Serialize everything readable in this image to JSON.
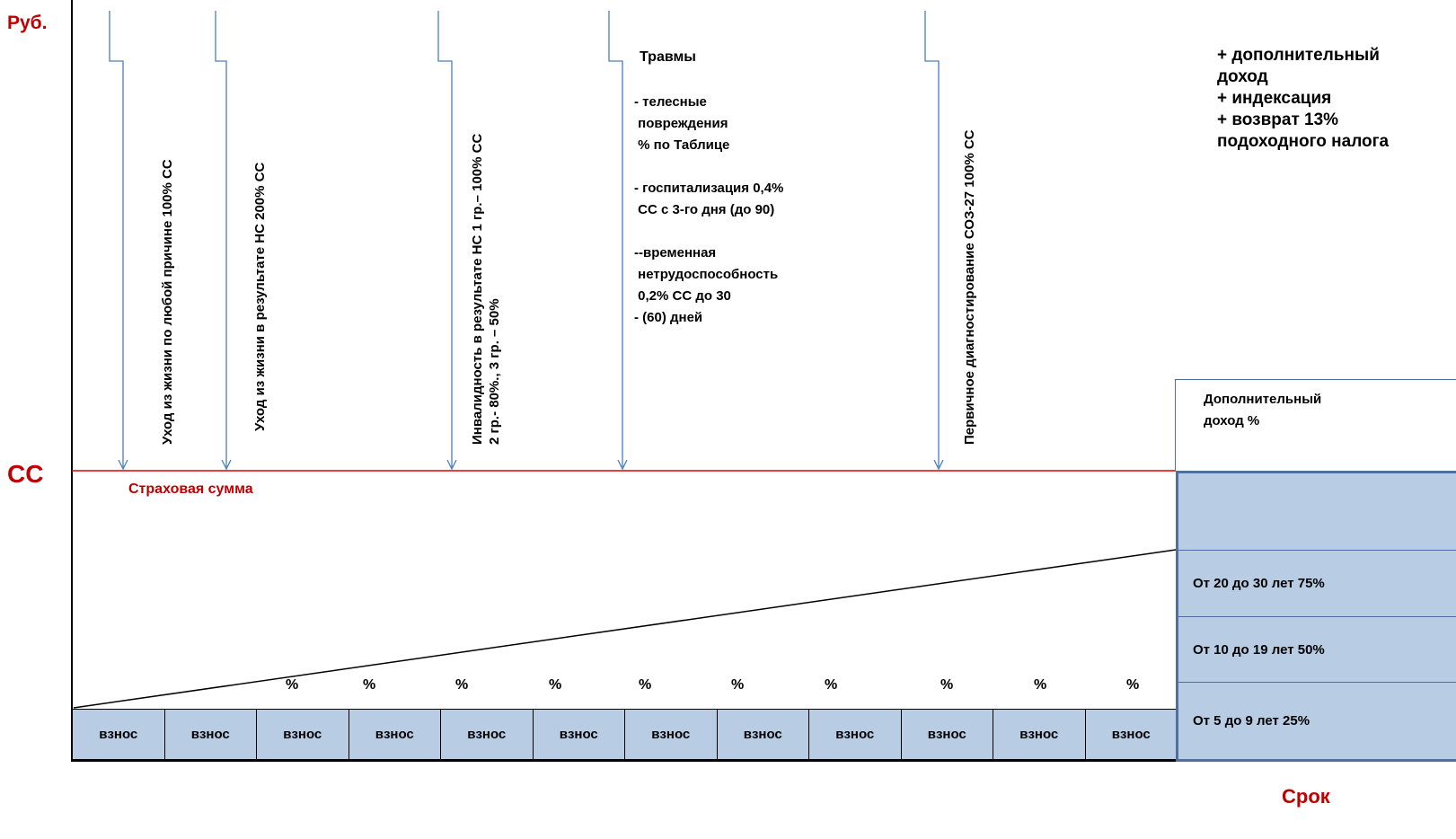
{
  "axis": {
    "y_label": "Руб.",
    "cc_label": "СС",
    "x_label": "Срок",
    "sum_label": "Страховая сумма"
  },
  "events": [
    {
      "lines": [
        "Уход из жизни  по любой причине 100% СС"
      ]
    },
    {
      "lines": [
        "Уход из жизни  в результате НС  200% СС"
      ]
    },
    {
      "lines": [
        "Инвалидность в результате НС  1 гр.– 100% СС",
        "2 гр.- 80%., 3 гр. – 50%"
      ]
    },
    {
      "lines": [
        "Первичное диагностирование СОЗ-27 100% СС"
      ]
    }
  ],
  "injuries": {
    "title": "Травмы",
    "text": "- телесные\n повреждения\n % по Таблице\n\n- госпитализация 0,4%\n СС с 3-го дня (до 90)\n\n--временная\n нетрудоспособность\n 0,2% СС до 30\n- (60) дней"
  },
  "extras": {
    "text": "+ дополнительный\nдоход\n+ индексация\n+ возврат 13%\nподоходного налога"
  },
  "contributions": {
    "labels": [
      "взнос",
      "взнос",
      "взнос",
      "взнос",
      "взнос",
      "взнос",
      "взнос",
      "взнос",
      "взнос",
      "взнос",
      "взнос",
      "взнос"
    ],
    "percent_marks": [
      "%",
      "%",
      "%",
      "%",
      "%",
      "%",
      "%",
      "%",
      "%",
      "%"
    ]
  },
  "income_table": {
    "header": "Дополнительный\nдоход %",
    "rows": [
      {
        "label": ""
      },
      {
        "label": "От 20 до 30 лет 75%"
      },
      {
        "label": "От 10 до 19 лет 50%"
      },
      {
        "label": "От 5 до 9 лет 25%"
      }
    ]
  },
  "colors": {
    "red": "#c00000",
    "arrow_blue": "#4a7ebb",
    "box_fill": "#b8cce4",
    "box_border": "#4f6f9f"
  }
}
